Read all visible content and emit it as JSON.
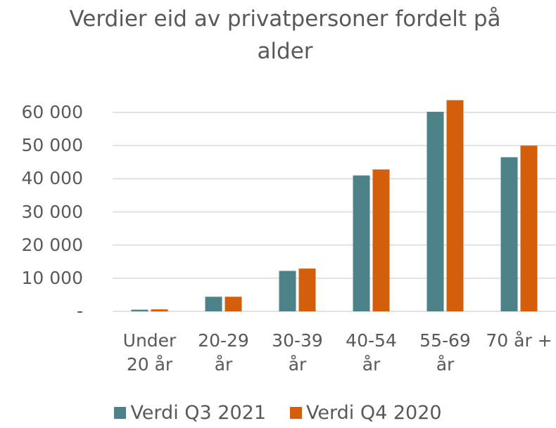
{
  "chart_data": {
    "type": "bar",
    "title": "Verdier eid av privatpersoner fordelt på alder",
    "categories": [
      "Under 20 år",
      "20-29 år",
      "30-39 år",
      "40-54 år",
      "55-69 år",
      "70 år +"
    ],
    "series": [
      {
        "name": "Verdi Q3 2021",
        "color": "#4e8289",
        "values": [
          500,
          4400,
          12200,
          41000,
          60200,
          46500
        ]
      },
      {
        "name": "Verdi Q4 2020",
        "color": "#d35f0c",
        "values": [
          600,
          4400,
          12900,
          42800,
          63700,
          50000
        ]
      }
    ],
    "ylim": [
      0,
      60000
    ],
    "yticks": [
      {
        "value": 0,
        "label": "-"
      },
      {
        "value": 10000,
        "label": "10 000"
      },
      {
        "value": 20000,
        "label": "20 000"
      },
      {
        "value": 30000,
        "label": "30 000"
      },
      {
        "value": 40000,
        "label": "40 000"
      },
      {
        "value": 50000,
        "label": "50 000"
      },
      {
        "value": 60000,
        "label": "60 000"
      }
    ],
    "grid": true,
    "legend": "bottom"
  }
}
